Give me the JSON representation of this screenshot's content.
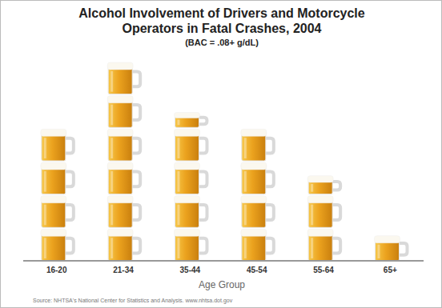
{
  "chart_data": {
    "type": "bar",
    "title": "Alcohol Involvement of Drivers and Motorcycle\nOperators in Fatal Crashes, 2004",
    "subtitle": "(BAC = .08+ g/dL)",
    "x_label": "Age Group",
    "source": "Source: NHTSA's National Center for Statistics and Analysis.  www.nhtsa.dot.gov",
    "categories": [
      "16-20",
      "21-34",
      "35-44",
      "45-54",
      "55-64",
      "65+"
    ],
    "values": [
      4,
      6,
      4.5,
      4,
      2.6,
      0.8
    ],
    "color": "#eba21e",
    "tick_labels": "x"
  }
}
